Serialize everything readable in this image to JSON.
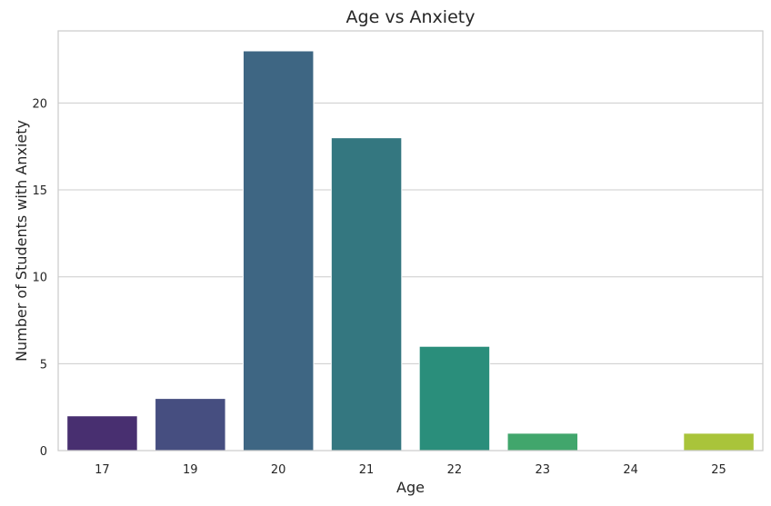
{
  "chart_data": {
    "type": "bar",
    "title": "Age vs Anxiety",
    "xlabel": "Age",
    "ylabel": "Number of Students with Anxiety",
    "categories": [
      "17",
      "19",
      "20",
      "21",
      "22",
      "23",
      "24",
      "25"
    ],
    "values": [
      2,
      3,
      23,
      18,
      6,
      1,
      0,
      1
    ],
    "colors": [
      "#482f70",
      "#464e80",
      "#3e6683",
      "#347780",
      "#2a8e7b",
      "#41a66c",
      "#78bb55",
      "#a9c43a"
    ],
    "ylim": [
      0,
      24.15
    ],
    "yticks": [
      0,
      5,
      10,
      15,
      20
    ],
    "grid": true,
    "legend": "none"
  }
}
